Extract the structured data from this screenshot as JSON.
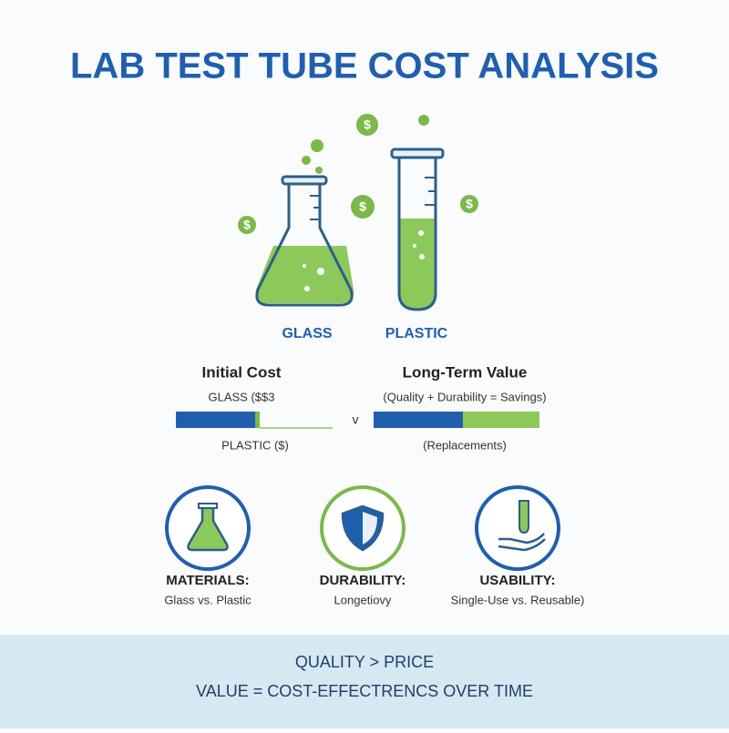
{
  "header": {
    "title": "LAB TEST TUBE COST ANALYSIS"
  },
  "illustration": {
    "coin_symbol": "$",
    "labels": [
      "GLASS",
      "PLASTIC"
    ]
  },
  "comparison": {
    "initial_cost": {
      "title": "Initial Cost",
      "top_label": "GLASS ($$3",
      "bottom_label": "PLASTIC ($)"
    },
    "separator": "v",
    "long_term_value": {
      "title": "Long-Term Value",
      "top_label": "(Quality + Durability = Savings)",
      "bottom_label": "(Replacements)"
    }
  },
  "features": [
    {
      "title": "MATERIALS:",
      "text": "Glass vs. Plastic"
    },
    {
      "title": "DURABILITY:",
      "text": "Longetiovy"
    },
    {
      "title": "USABILITY:",
      "text": "Single-Use vs. Reusable)"
    }
  ],
  "footer": {
    "lines": [
      "QUALITY > PRICE",
      "VALUE = COST-EFFECTRENCS OVER TIME"
    ]
  }
}
